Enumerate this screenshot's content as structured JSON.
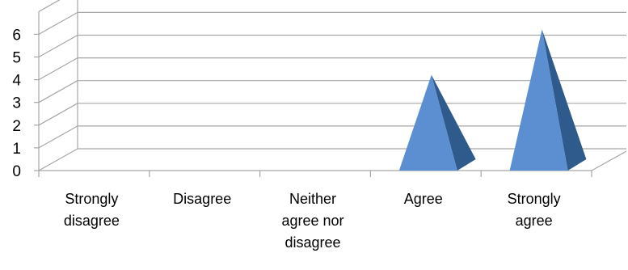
{
  "chart_data": {
    "type": "bar",
    "style": "3d-pyramid",
    "categories": [
      "Strongly disagree",
      "Disagree",
      "Neither agree nor disagree",
      "Agree",
      "Strongly agree"
    ],
    "category_label_lines": [
      [
        "Strongly",
        "disagree"
      ],
      [
        "Disagree"
      ],
      [
        "Neither",
        "agree nor",
        "disagree"
      ],
      [
        "Agree"
      ],
      [
        "Strongly",
        "agree"
      ]
    ],
    "values": [
      0,
      0,
      0,
      4,
      6
    ],
    "y_ticks": [
      "0",
      "1",
      "2",
      "3",
      "4",
      "5",
      "6"
    ],
    "ylim": [
      0,
      6
    ],
    "grid": true,
    "legend": "none",
    "colors": {
      "pyramid_front": "#5B8FD1",
      "pyramid_side": "#2F5A8C",
      "grid": "#A6A6A6"
    }
  }
}
